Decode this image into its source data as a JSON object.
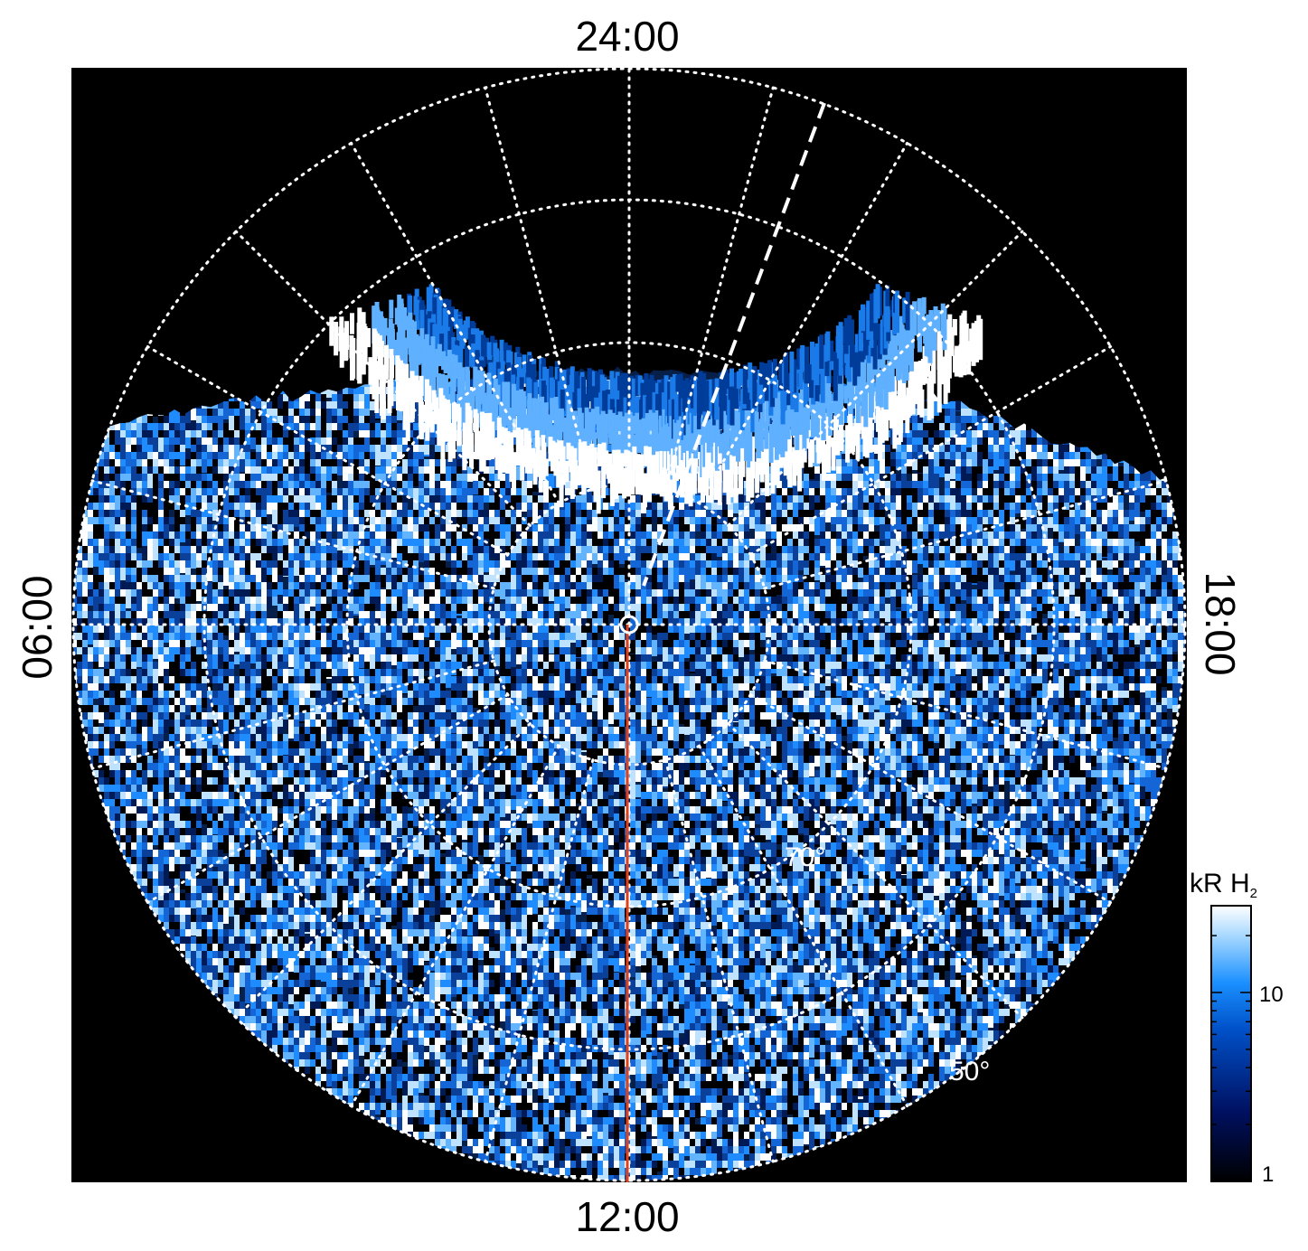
{
  "projection": {
    "hemisphere": "polar",
    "local_time_labels": {
      "top": "24:00",
      "bottom": "12:00",
      "left": "06:00",
      "right": "18:00"
    },
    "latitude_labels": [
      "70°",
      "50°"
    ],
    "meridian_color": "#e0401a",
    "background_color": "#000000",
    "grid_style": "dotted white"
  },
  "colorbar": {
    "title": "kR H",
    "title_subscript": "2",
    "scale": "log",
    "range": [
      1,
      20
    ],
    "tick_labels": [
      "10",
      "1"
    ],
    "colors": [
      "#000000",
      "#001060",
      "#0050c8",
      "#1a90ff",
      "#9fd4ff",
      "#ffffff"
    ]
  }
}
